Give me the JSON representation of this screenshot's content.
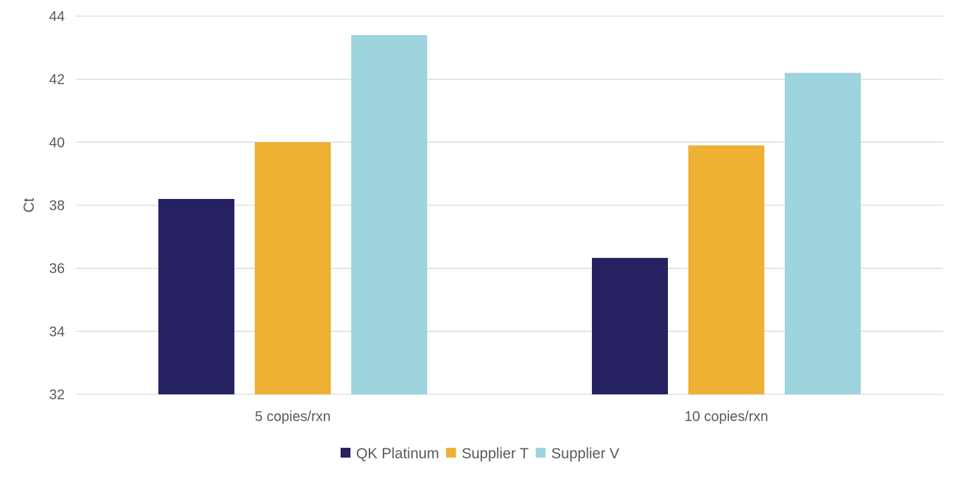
{
  "chart_data": {
    "type": "bar",
    "title": "",
    "xlabel": "",
    "ylabel": "Ct",
    "categories": [
      "5 copies/rxn",
      "10 copies/rxn"
    ],
    "series": [
      {
        "name": "QK Platinum",
        "color": "#262262",
        "values": [
          38.2,
          36.33
        ]
      },
      {
        "name": "Supplier T",
        "color": "#EEB133",
        "values": [
          40.0,
          39.9
        ]
      },
      {
        "name": "Supplier V",
        "color": "#9DD4DD",
        "values": [
          43.4,
          42.2
        ]
      }
    ],
    "ylim": [
      32,
      44
    ],
    "yticks": [
      32,
      34,
      36,
      38,
      40,
      42,
      44
    ],
    "grid": true,
    "legend_position": "bottom"
  }
}
